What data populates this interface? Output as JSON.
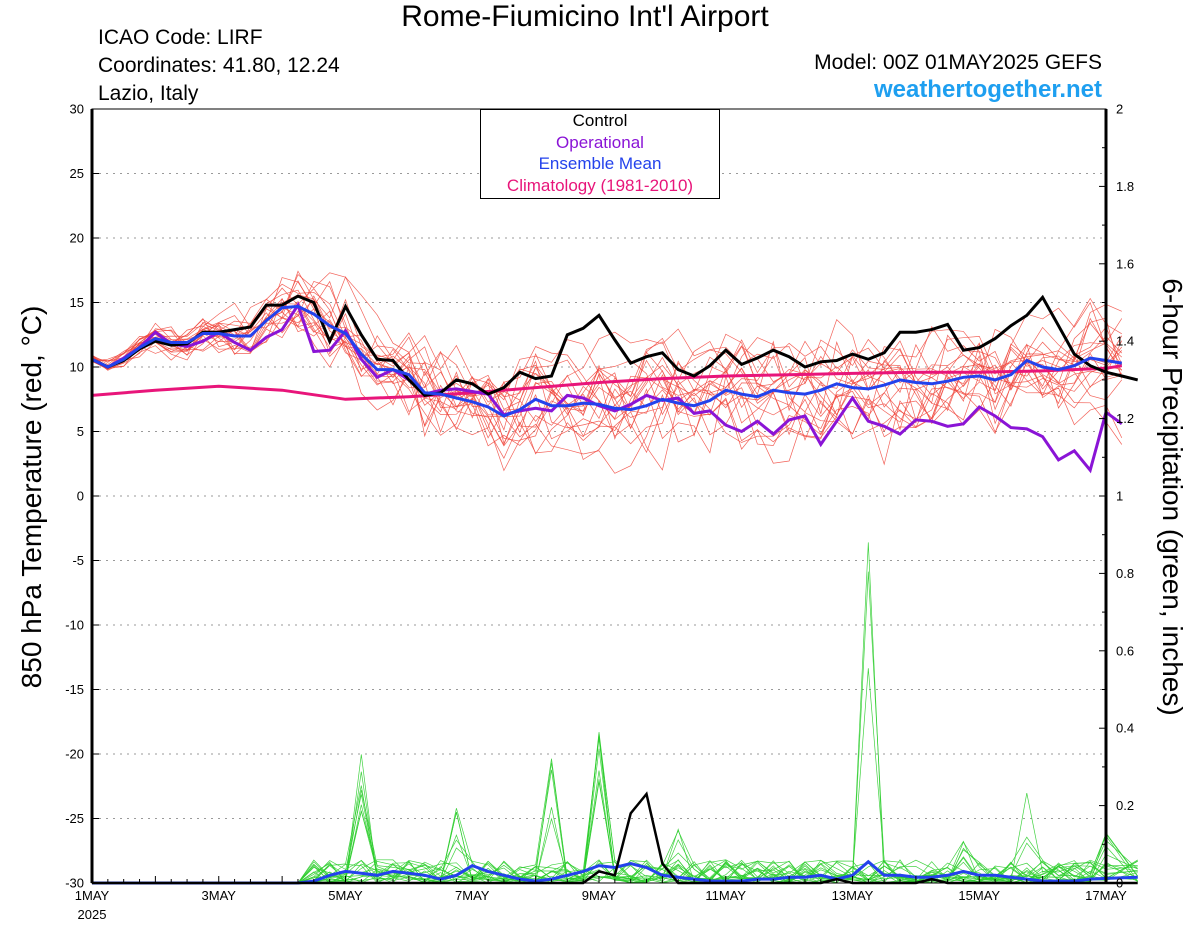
{
  "header": {
    "title": "Rome-Fiumicino Int'l Airport",
    "icao": "ICAO Code: LIRF",
    "coordinates": "Coordinates: 41.80, 12.24",
    "region": "Lazio, Italy",
    "model": "Model: 00Z 01MAY2025 GEFS",
    "site": "weathertogether.net"
  },
  "chart_data": {
    "type": "line",
    "ylabel": "850 hPa Temperature (red, °C)",
    "y2label": "6-hour Precipitation (green, inches)",
    "ylim": [
      -30,
      30
    ],
    "y2lim": [
      0,
      2
    ],
    "yticks": [
      "30",
      "25",
      "20",
      "15",
      "10",
      "5",
      "0",
      "-5",
      "-10",
      "-15",
      "-20",
      "-25",
      "-30"
    ],
    "y2ticks": [
      "2",
      "1.8",
      "1.6",
      "1.4",
      "1.2",
      "1",
      "0.8",
      "0.6",
      "0.4",
      "0.2",
      "0"
    ],
    "xlim": [
      0,
      16
    ],
    "xticks": [
      {
        "day": 0,
        "label": "1MAY",
        "sub": "2025"
      },
      {
        "day": 2,
        "label": "3MAY",
        "sub": ""
      },
      {
        "day": 4,
        "label": "5MAY",
        "sub": ""
      },
      {
        "day": 6,
        "label": "7MAY",
        "sub": ""
      },
      {
        "day": 8,
        "label": "9MAY",
        "sub": ""
      },
      {
        "day": 10,
        "label": "11MAY",
        "sub": ""
      },
      {
        "day": 12,
        "label": "13MAY",
        "sub": ""
      },
      {
        "day": 14,
        "label": "15MAY",
        "sub": ""
      },
      {
        "day": 16,
        "label": "17MAY",
        "sub": ""
      }
    ],
    "grid": true,
    "legend": {
      "position": "top-center",
      "entries": [
        {
          "label": "Control",
          "color": "#000000"
        },
        {
          "label": "Operational",
          "color": "#8a14d6"
        },
        {
          "label": "Ensemble Mean",
          "color": "#2342ec"
        },
        {
          "label": "Climatology (1981-2010)",
          "color": "#e8157a"
        }
      ]
    },
    "colors": {
      "members_temp": "#f0463c",
      "members_precip": "#2ccd2c",
      "control": "#000000",
      "operational": "#8a14d6",
      "mean": "#2342ec",
      "climatology": "#e8157a"
    },
    "temperature": {
      "control": [
        [
          0,
          10.6
        ],
        [
          0.25,
          10.0
        ],
        [
          0.5,
          10.5
        ],
        [
          0.75,
          11.4
        ],
        [
          1,
          12.0
        ],
        [
          1.25,
          11.7
        ],
        [
          1.5,
          11.8
        ],
        [
          1.75,
          12.7
        ],
        [
          2,
          12.7
        ],
        [
          2.25,
          12.9
        ],
        [
          2.5,
          13.1
        ],
        [
          2.75,
          14.8
        ],
        [
          3,
          14.8
        ],
        [
          3.25,
          15.5
        ],
        [
          3.5,
          15.0
        ],
        [
          3.75,
          12.0
        ],
        [
          4,
          14.7
        ],
        [
          4.25,
          12.5
        ],
        [
          4.5,
          10.6
        ],
        [
          4.75,
          10.5
        ],
        [
          5,
          9.0
        ],
        [
          5.25,
          7.8
        ],
        [
          5.5,
          8.0
        ],
        [
          5.75,
          9.0
        ],
        [
          6,
          8.7
        ],
        [
          6.25,
          7.9
        ],
        [
          6.5,
          8.4
        ],
        [
          6.75,
          9.6
        ],
        [
          7,
          9.1
        ],
        [
          7.25,
          9.3
        ],
        [
          7.5,
          12.5
        ],
        [
          7.75,
          13.0
        ],
        [
          8,
          14.0
        ],
        [
          8.25,
          12.1
        ],
        [
          8.5,
          10.3
        ],
        [
          8.75,
          10.8
        ],
        [
          9,
          11.1
        ],
        [
          9.25,
          9.8
        ],
        [
          9.5,
          9.3
        ],
        [
          9.75,
          10.1
        ],
        [
          10,
          11.3
        ],
        [
          10.25,
          10.2
        ],
        [
          10.5,
          10.7
        ],
        [
          10.75,
          11.3
        ],
        [
          11,
          10.8
        ],
        [
          11.25,
          10.0
        ],
        [
          11.5,
          10.4
        ],
        [
          11.75,
          10.5
        ],
        [
          12,
          11.0
        ],
        [
          12.25,
          10.6
        ],
        [
          12.5,
          11.1
        ],
        [
          12.75,
          12.7
        ],
        [
          13,
          12.7
        ],
        [
          13.25,
          12.9
        ],
        [
          13.5,
          13.3
        ],
        [
          13.75,
          11.3
        ],
        [
          14,
          11.5
        ],
        [
          14.25,
          12.2
        ],
        [
          14.5,
          13.2
        ],
        [
          14.75,
          14.0
        ],
        [
          15,
          15.4
        ],
        [
          15.25,
          13.2
        ],
        [
          15.5,
          11.0
        ],
        [
          15.75,
          10.1
        ],
        [
          16,
          9.6
        ],
        [
          16.25,
          9.3
        ],
        [
          16.5,
          9.0
        ]
      ],
      "operational": [
        [
          0,
          10.6
        ],
        [
          0.25,
          10.0
        ],
        [
          0.5,
          10.7
        ],
        [
          0.75,
          11.5
        ],
        [
          1,
          12.7
        ],
        [
          1.25,
          11.8
        ],
        [
          1.5,
          11.6
        ],
        [
          1.75,
          12.0
        ],
        [
          2,
          12.7
        ],
        [
          2.25,
          11.9
        ],
        [
          2.5,
          11.3
        ],
        [
          2.75,
          12.3
        ],
        [
          3,
          12.9
        ],
        [
          3.25,
          14.8
        ],
        [
          3.5,
          11.2
        ],
        [
          3.75,
          11.3
        ],
        [
          4,
          12.8
        ],
        [
          4.25,
          10.6
        ],
        [
          4.5,
          9.2
        ],
        [
          4.75,
          9.8
        ],
        [
          5,
          9.0
        ],
        [
          5.25,
          7.9
        ],
        [
          5.5,
          8.2
        ],
        [
          5.75,
          8.3
        ],
        [
          6,
          8.1
        ],
        [
          6.25,
          7.9
        ],
        [
          6.5,
          6.3
        ],
        [
          6.75,
          6.6
        ],
        [
          7,
          6.8
        ],
        [
          7.25,
          6.6
        ],
        [
          7.5,
          7.8
        ],
        [
          7.75,
          7.6
        ],
        [
          8,
          7.0
        ],
        [
          8.25,
          6.6
        ],
        [
          8.5,
          7.1
        ],
        [
          8.75,
          7.8
        ],
        [
          9,
          7.4
        ],
        [
          9.25,
          7.6
        ],
        [
          9.5,
          6.4
        ],
        [
          9.75,
          6.6
        ],
        [
          10,
          5.5
        ],
        [
          10.25,
          5.0
        ],
        [
          10.5,
          5.8
        ],
        [
          10.75,
          4.8
        ],
        [
          11,
          5.9
        ],
        [
          11.25,
          6.2
        ],
        [
          11.5,
          4.0
        ],
        [
          11.75,
          5.8
        ],
        [
          12,
          7.6
        ],
        [
          12.25,
          5.8
        ],
        [
          12.5,
          5.4
        ],
        [
          12.75,
          4.8
        ],
        [
          13,
          5.9
        ],
        [
          13.25,
          5.8
        ],
        [
          13.5,
          5.4
        ],
        [
          13.75,
          5.6
        ],
        [
          14,
          6.9
        ],
        [
          14.25,
          6.2
        ],
        [
          14.5,
          5.3
        ],
        [
          14.75,
          5.2
        ],
        [
          15,
          4.6
        ],
        [
          15.25,
          2.8
        ],
        [
          15.5,
          3.5
        ],
        [
          15.75,
          2.0
        ],
        [
          16,
          6.5
        ],
        [
          16.25,
          5.6
        ]
      ],
      "mean": [
        [
          0,
          10.6
        ],
        [
          0.25,
          10.0
        ],
        [
          0.5,
          10.6
        ],
        [
          0.75,
          11.5
        ],
        [
          1,
          12.2
        ],
        [
          1.25,
          11.9
        ],
        [
          1.5,
          11.9
        ],
        [
          1.75,
          12.6
        ],
        [
          2,
          12.6
        ],
        [
          2.25,
          12.4
        ],
        [
          2.5,
          12.4
        ],
        [
          2.75,
          13.6
        ],
        [
          3,
          14.6
        ],
        [
          3.25,
          14.7
        ],
        [
          3.5,
          14.1
        ],
        [
          3.75,
          13.2
        ],
        [
          4,
          12.6
        ],
        [
          4.25,
          11.0
        ],
        [
          4.5,
          9.8
        ],
        [
          4.75,
          9.8
        ],
        [
          5,
          9.4
        ],
        [
          5.25,
          8.0
        ],
        [
          5.5,
          7.9
        ],
        [
          5.75,
          7.6
        ],
        [
          6,
          7.3
        ],
        [
          6.25,
          6.9
        ],
        [
          6.5,
          6.2
        ],
        [
          6.75,
          6.7
        ],
        [
          7,
          7.5
        ],
        [
          7.25,
          7.0
        ],
        [
          7.5,
          7.0
        ],
        [
          7.75,
          7.2
        ],
        [
          8,
          7.1
        ],
        [
          8.25,
          6.8
        ],
        [
          8.5,
          6.7
        ],
        [
          8.75,
          7.0
        ],
        [
          9,
          7.5
        ],
        [
          9.25,
          7.2
        ],
        [
          9.5,
          7.0
        ],
        [
          9.75,
          7.4
        ],
        [
          10,
          8.2
        ],
        [
          10.25,
          7.9
        ],
        [
          10.5,
          7.7
        ],
        [
          10.75,
          8.2
        ],
        [
          11,
          8.0
        ],
        [
          11.25,
          7.9
        ],
        [
          11.5,
          8.2
        ],
        [
          11.75,
          8.7
        ],
        [
          12,
          8.4
        ],
        [
          12.25,
          8.3
        ],
        [
          12.5,
          8.6
        ],
        [
          12.75,
          9.0
        ],
        [
          13,
          8.8
        ],
        [
          13.25,
          8.7
        ],
        [
          13.5,
          8.9
        ],
        [
          13.75,
          9.2
        ],
        [
          14,
          9.3
        ],
        [
          14.25,
          9.0
        ],
        [
          14.5,
          9.4
        ],
        [
          14.75,
          10.5
        ],
        [
          15,
          10.0
        ],
        [
          15.25,
          9.8
        ],
        [
          15.5,
          10.1
        ],
        [
          15.75,
          10.7
        ],
        [
          16,
          10.5
        ],
        [
          16.25,
          10.3
        ]
      ],
      "climatology": [
        [
          0,
          7.8
        ],
        [
          1,
          8.2
        ],
        [
          2,
          8.5
        ],
        [
          3,
          8.2
        ],
        [
          4,
          7.5
        ],
        [
          5,
          7.7
        ],
        [
          6,
          8.0
        ],
        [
          7,
          8.4
        ],
        [
          8,
          8.8
        ],
        [
          9,
          9.1
        ],
        [
          10,
          9.3
        ],
        [
          11,
          9.4
        ],
        [
          12,
          9.5
        ],
        [
          13,
          9.6
        ],
        [
          14,
          9.6
        ],
        [
          15,
          9.7
        ],
        [
          16,
          9.9
        ],
        [
          16.25,
          10.1
        ]
      ]
    },
    "precipitation": {
      "control": [
        [
          0,
          0
        ],
        [
          7.75,
          0
        ],
        [
          8,
          0.03
        ],
        [
          8.25,
          0.02
        ],
        [
          8.5,
          0.18
        ],
        [
          8.75,
          0.23
        ],
        [
          9,
          0.05
        ],
        [
          9.25,
          0
        ],
        [
          10,
          0
        ],
        [
          11.5,
          0
        ],
        [
          11.75,
          0.01
        ],
        [
          12,
          0
        ],
        [
          13,
          0
        ],
        [
          13.25,
          0.01
        ],
        [
          13.5,
          0
        ],
        [
          16.5,
          0
        ]
      ],
      "mean": [
        [
          0,
          0
        ],
        [
          3.25,
          0
        ],
        [
          3.5,
          0.005
        ],
        [
          3.75,
          0.02
        ],
        [
          4,
          0.03
        ],
        [
          4.25,
          0.025
        ],
        [
          4.5,
          0.02
        ],
        [
          4.75,
          0.03
        ],
        [
          5,
          0.025
        ],
        [
          5.25,
          0.02
        ],
        [
          5.5,
          0.01
        ],
        [
          5.75,
          0.02
        ],
        [
          6,
          0.045
        ],
        [
          6.25,
          0.03
        ],
        [
          6.5,
          0.02
        ],
        [
          6.75,
          0.01
        ],
        [
          7,
          0.005
        ],
        [
          7.25,
          0.01
        ],
        [
          7.5,
          0.02
        ],
        [
          7.75,
          0.03
        ],
        [
          8,
          0.045
        ],
        [
          8.25,
          0.04
        ],
        [
          8.5,
          0.05
        ],
        [
          8.75,
          0.04
        ],
        [
          9,
          0.02
        ],
        [
          9.25,
          0.015
        ],
        [
          9.5,
          0.01
        ],
        [
          9.75,
          0.005
        ],
        [
          10,
          0.005
        ],
        [
          10.25,
          0.005
        ],
        [
          10.5,
          0.01
        ],
        [
          10.75,
          0.01
        ],
        [
          11,
          0.015
        ],
        [
          11.25,
          0.015
        ],
        [
          11.5,
          0.02
        ],
        [
          11.75,
          0.01
        ],
        [
          12,
          0.02
        ],
        [
          12.25,
          0.055
        ],
        [
          12.5,
          0.02
        ],
        [
          12.75,
          0.02
        ],
        [
          13,
          0.015
        ],
        [
          13.25,
          0.015
        ],
        [
          13.5,
          0.02
        ],
        [
          13.75,
          0.03
        ],
        [
          14,
          0.02
        ],
        [
          14.25,
          0.02
        ],
        [
          14.5,
          0.015
        ],
        [
          14.75,
          0.01
        ],
        [
          15,
          0.005
        ],
        [
          15.25,
          0.005
        ],
        [
          15.5,
          0.005
        ],
        [
          15.75,
          0.01
        ],
        [
          16,
          0.012
        ],
        [
          16.5,
          0.015
        ]
      ]
    }
  }
}
